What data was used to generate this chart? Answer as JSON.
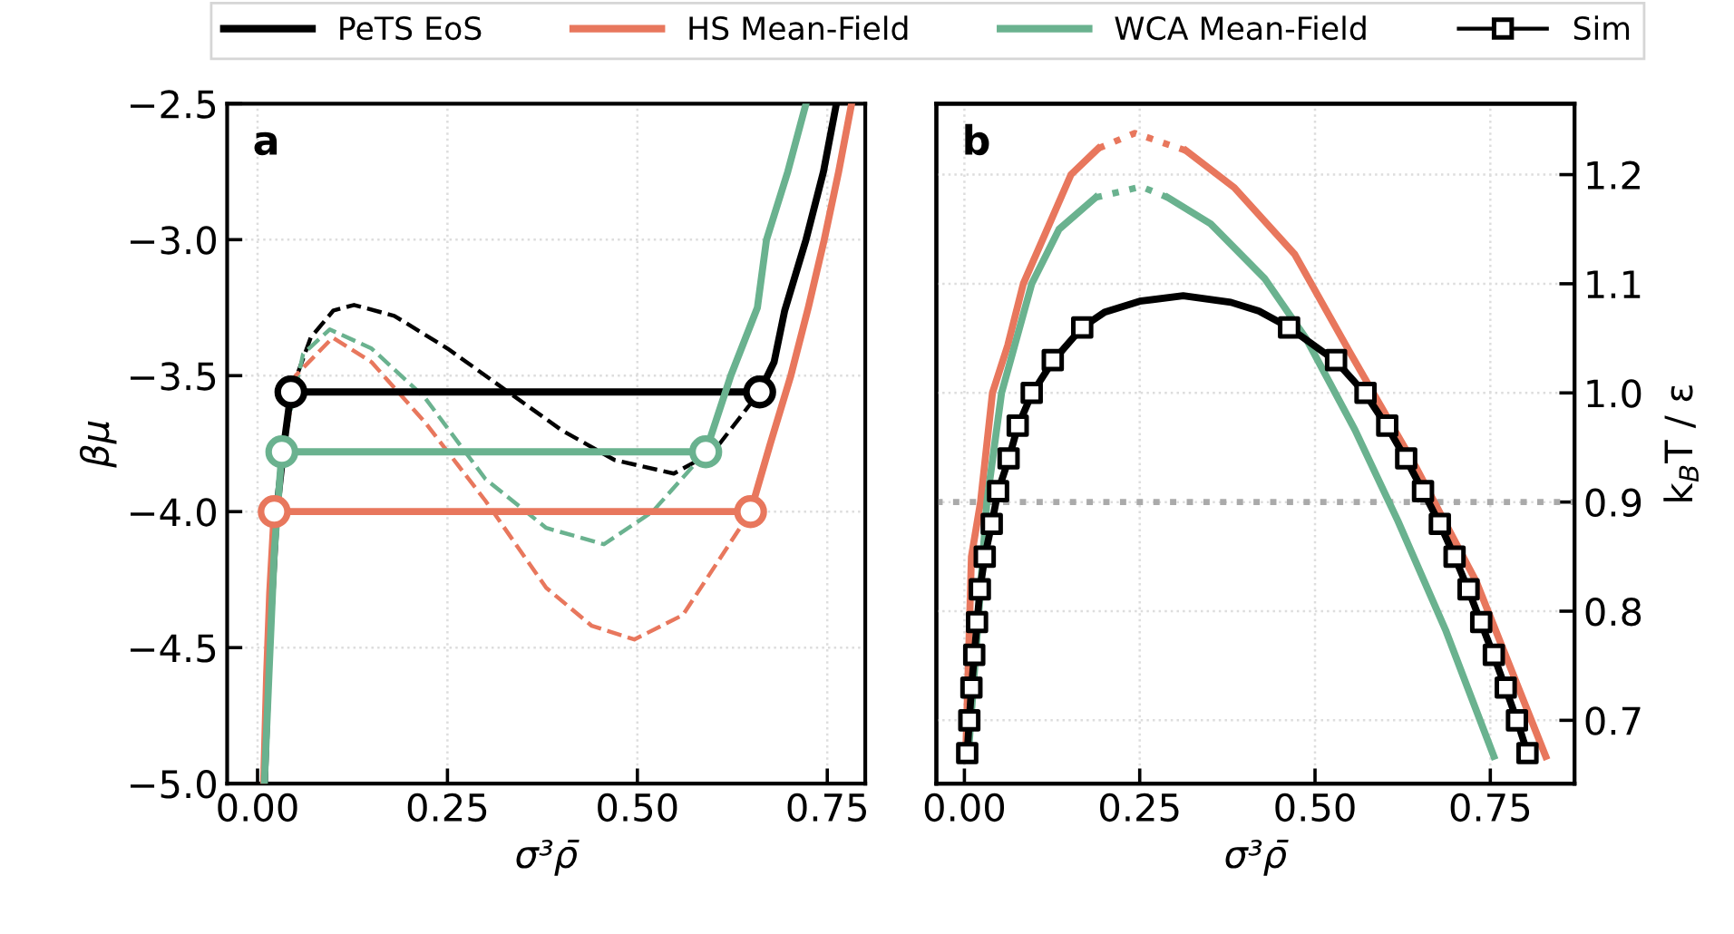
{
  "chart_data": [
    {
      "type": "line",
      "xlabel": "σ³ρ̄",
      "ylabel": "βμ",
      "annotations": [
        "a"
      ],
      "legend": "top",
      "grid": true,
      "xlim": [
        -0.04,
        0.8
      ],
      "xticks": [
        {
          "value": 0,
          "label": "0.00"
        },
        {
          "value": 0.25,
          "label": "0.25"
        },
        {
          "value": 0.5,
          "label": "0.50"
        },
        {
          "value": 0.75,
          "label": "0.75"
        }
      ],
      "ylim": [
        -5.0,
        -2.5
      ],
      "yticks": [
        {
          "value": -5.0,
          "label": "−5.0"
        },
        {
          "value": -4.5,
          "label": "−4.5"
        },
        {
          "value": -4.0,
          "label": "−4.0"
        },
        {
          "value": -3.5,
          "label": "−3.5"
        },
        {
          "value": -3.0,
          "label": "−3.0"
        },
        {
          "value": -2.5,
          "label": "−2.5"
        }
      ],
      "series": [
        {
          "color": "#000000",
          "line_style": "dashed",
          "x": [
            0.044,
            0.07,
            0.1,
            0.127,
            0.18,
            0.25,
            0.33,
            0.4,
            0.47,
            0.548,
            0.6,
            0.661
          ],
          "values": [
            -3.56,
            -3.36,
            -3.26,
            -3.24,
            -3.28,
            -3.4,
            -3.56,
            -3.7,
            -3.81,
            -3.86,
            -3.78,
            -3.56
          ]
        },
        {
          "color": "#6ab28f",
          "line_style": "dashed",
          "x": [
            0.032,
            0.06,
            0.095,
            0.15,
            0.22,
            0.3,
            0.38,
            0.456,
            0.52,
            0.59
          ],
          "values": [
            -3.78,
            -3.42,
            -3.33,
            -3.4,
            -3.58,
            -3.88,
            -4.06,
            -4.12,
            -4.0,
            -3.78
          ]
        },
        {
          "color": "#e8775d",
          "line_style": "dashed",
          "x": [
            0.022,
            0.05,
            0.099,
            0.15,
            0.22,
            0.3,
            0.38,
            0.44,
            0.496,
            0.56,
            0.649
          ],
          "values": [
            -4.0,
            -3.5,
            -3.36,
            -3.45,
            -3.67,
            -3.96,
            -4.28,
            -4.42,
            -4.47,
            -4.38,
            -4.0
          ]
        },
        {
          "name": "PeTS EoS",
          "color": "#000000",
          "line_style": "solid",
          "x": [
            0.009,
            0.015,
            0.025,
            0.035,
            0.044,
            0.661,
            0.68,
            0.694,
            0.722,
            0.745,
            0.762
          ],
          "values": [
            -5.0,
            -4.5,
            -4.0,
            -3.75,
            -3.56,
            -3.56,
            -3.45,
            -3.26,
            -3.0,
            -2.75,
            -2.5
          ]
        },
        {
          "name": "HS Mean-Field",
          "color": "#e8775d",
          "line_style": "solid",
          "x": [
            0.008,
            0.012,
            0.016,
            0.022,
            0.649,
            0.675,
            0.702,
            0.725,
            0.746,
            0.765,
            0.782
          ],
          "values": [
            -5.0,
            -4.6,
            -4.3,
            -4.0,
            -4.0,
            -3.75,
            -3.5,
            -3.25,
            -3.0,
            -2.75,
            -2.5
          ]
        },
        {
          "name": "WCA Mean-Field",
          "color": "#6ab28f",
          "line_style": "solid",
          "x": [
            0.009,
            0.015,
            0.022,
            0.032,
            0.59,
            0.623,
            0.658,
            0.67,
            0.698,
            0.722
          ],
          "values": [
            -5.0,
            -4.6,
            -4.15,
            -3.78,
            -3.78,
            -3.5,
            -3.25,
            -3.0,
            -2.75,
            -2.5
          ]
        },
        {
          "type": "scatter",
          "marker": "circle",
          "color": "#000000",
          "x": [
            0.044,
            0.661
          ],
          "values": [
            -3.56,
            -3.56
          ]
        },
        {
          "type": "scatter",
          "marker": "circle",
          "color": "#6ab28f",
          "x": [
            0.032,
            0.59
          ],
          "values": [
            -3.78,
            -3.78
          ]
        },
        {
          "type": "scatter",
          "marker": "circle",
          "color": "#e8775d",
          "x": [
            0.022,
            0.649
          ],
          "values": [
            -4.0,
            -4.0
          ]
        }
      ]
    },
    {
      "type": "line",
      "xlabel": "σ³ρ̄",
      "y2label": "k$_{B}$T / ε",
      "annotations": [
        "b"
      ],
      "grid": true,
      "xlim": [
        -0.04,
        0.87
      ],
      "xticks": [
        {
          "value": 0,
          "label": "0.00"
        },
        {
          "value": 0.25,
          "label": "0.25"
        },
        {
          "value": 0.5,
          "label": "0.50"
        },
        {
          "value": 0.75,
          "label": "0.75"
        }
      ],
      "y2lim": [
        0.642,
        1.265
      ],
      "y2ticks": [
        0.7,
        0.8,
        0.9,
        {
          "value": 1.0,
          "label": "1.0"
        },
        1.1,
        1.2
      ],
      "ref_lines": [
        {
          "axis": "y2",
          "value": 0.9,
          "color": "#aaaaaa",
          "line_style": "dotted"
        }
      ],
      "series": [
        {
          "axis": "y2",
          "color": "#e8775d",
          "line_style": "dotted",
          "x": [
            0.191,
            0.243,
            0.316
          ],
          "values": [
            1.224,
            1.238,
            1.222
          ]
        },
        {
          "axis": "y2",
          "color": "#6ab28f",
          "line_style": "dotted",
          "x": [
            0.187,
            0.252,
            0.29
          ],
          "values": [
            1.179,
            1.189,
            1.179
          ]
        },
        {
          "axis": "y2",
          "name": "HS Mean-Field",
          "color": "#e8775d",
          "line_style": "solid",
          "x": [
            0.002,
            0.01,
            0.023,
            0.04,
            0.062,
            0.084,
            0.152,
            0.191,
            0.243,
            0.316,
            0.385,
            0.471,
            0.549,
            0.643,
            0.73,
            0.829
          ],
          "values": [
            0.67,
            0.85,
            0.9,
            1.0,
            1.044,
            1.1,
            1.2,
            1.224,
            null,
            1.222,
            1.188,
            1.127,
            1.038,
            0.933,
            0.827,
            0.667
          ]
        },
        {
          "axis": "y2",
          "name": "WCA Mean-Field",
          "color": "#6ab28f",
          "line_style": "solid",
          "x": [
            0.006,
            0.032,
            0.053,
            0.096,
            0.135,
            0.187,
            0.252,
            0.29,
            0.351,
            0.428,
            0.488,
            0.557,
            0.618,
            0.686,
            0.755
          ],
          "values": [
            0.672,
            0.9,
            1.0,
            1.1,
            1.15,
            1.179,
            null,
            1.179,
            1.155,
            1.105,
            1.049,
            0.966,
            0.883,
            0.783,
            0.667
          ]
        },
        {
          "axis": "y2",
          "name": "PeTS EoS",
          "color": "#000000",
          "line_style": "solid",
          "x": [
            0.004,
            0.007,
            0.01,
            0.014,
            0.018,
            0.022,
            0.029,
            0.039,
            0.048,
            0.063,
            0.076,
            0.096,
            0.126,
            0.168,
            0.2,
            0.25,
            0.312,
            0.38,
            0.42,
            0.463,
            0.53,
            0.572,
            0.603,
            0.63,
            0.654,
            0.678,
            0.699,
            0.719,
            0.737,
            0.755,
            0.772,
            0.788,
            0.803
          ],
          "values": [
            0.67,
            0.7,
            0.729,
            0.759,
            0.789,
            0.819,
            0.85,
            0.88,
            0.91,
            0.939,
            0.969,
            0.999,
            1.029,
            1.06,
            1.074,
            1.084,
            1.089,
            1.083,
            1.075,
            1.06,
            1.029,
            0.999,
            0.969,
            0.939,
            0.91,
            0.88,
            0.85,
            0.819,
            0.789,
            0.759,
            0.729,
            0.7,
            0.67
          ]
        },
        {
          "axis": "y2",
          "type": "scatter",
          "name": "Sim",
          "color": "#000000",
          "marker": "square",
          "x": [
            0.004,
            0.007,
            0.01,
            0.014,
            0.018,
            0.022,
            0.029,
            0.039,
            0.048,
            0.063,
            0.076,
            0.096,
            0.126,
            0.168,
            0.3,
            0.463,
            0.53,
            0.572,
            0.603,
            0.63,
            0.654,
            0.678,
            0.699,
            0.719,
            0.737,
            0.755,
            0.772,
            0.788,
            0.803
          ],
          "values": [
            0.67,
            0.7,
            0.73,
            0.76,
            0.79,
            0.82,
            0.85,
            0.88,
            0.91,
            0.94,
            0.97,
            1.0,
            1.03,
            1.06,
            null,
            1.06,
            1.03,
            1.0,
            0.97,
            0.94,
            0.91,
            0.88,
            0.85,
            0.82,
            0.79,
            0.76,
            0.73,
            0.7,
            0.67
          ]
        }
      ]
    }
  ]
}
